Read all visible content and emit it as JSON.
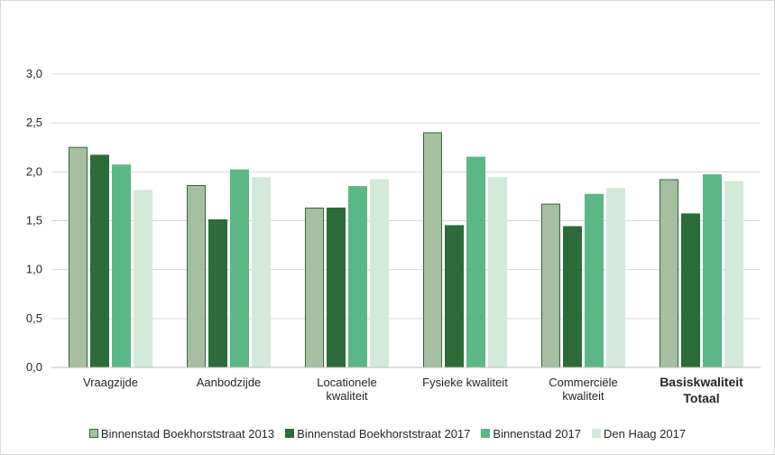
{
  "chart_data": {
    "type": "bar",
    "title": "",
    "xlabel": "",
    "ylabel": "",
    "ylim": [
      0,
      3.0
    ],
    "yticks": [
      "0,0",
      "0,5",
      "1,0",
      "1,5",
      "2,0",
      "2,5",
      "3,0"
    ],
    "grid": true,
    "legend_position": "bottom",
    "categories": [
      [
        "Vraagzijde"
      ],
      [
        "Aanbodzijde"
      ],
      [
        "Locationele",
        "kwaliteit"
      ],
      [
        "Fysieke kwaliteit"
      ],
      [
        "Commerciële",
        "kwaliteit"
      ],
      [
        "Basiskwaliteit",
        "Totaal"
      ]
    ],
    "bold_categories": [
      false,
      false,
      false,
      false,
      false,
      true
    ],
    "series": [
      {
        "name": "Binnenstad Boekhorststraat 2013",
        "color": "#a5bfa0",
        "stroke": "#2e6b3a",
        "values": [
          2.25,
          1.86,
          1.63,
          2.4,
          1.67,
          1.92
        ]
      },
      {
        "name": "Binnenstad Boekhorststraat 2017",
        "color": "#2e6b3a",
        "stroke": "#2e6b3a",
        "values": [
          2.17,
          1.51,
          1.63,
          1.45,
          1.44,
          1.57
        ]
      },
      {
        "name": "Binnenstad 2017",
        "color": "#5bb784",
        "stroke": "#5bb784",
        "values": [
          2.07,
          2.02,
          1.85,
          2.15,
          1.77,
          1.97
        ]
      },
      {
        "name": "Den Haag 2017",
        "color": "#d3e9d9",
        "stroke": "#d3e9d9",
        "values": [
          1.81,
          1.94,
          1.92,
          1.94,
          1.83,
          1.9
        ]
      }
    ]
  }
}
